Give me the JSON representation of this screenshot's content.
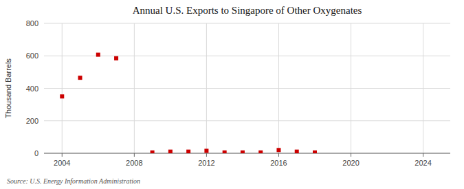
{
  "chart_data": {
    "type": "scatter",
    "title": "Annual U.S. Exports to Singapore of Other Oxygenates",
    "ylabel": "Thousand Barrels",
    "source": "Source: U.S. Energy Information Administration",
    "x": [
      2004,
      2005,
      2006,
      2007,
      2009,
      2010,
      2011,
      2012,
      2013,
      2014,
      2015,
      2016,
      2017,
      2018
    ],
    "values": [
      350,
      465,
      607,
      585,
      5,
      10,
      10,
      15,
      5,
      5,
      5,
      20,
      10,
      5
    ],
    "color": "#cc0000",
    "marker": "square",
    "xlim": [
      2003.0,
      2025.5
    ],
    "ylim": [
      0,
      800
    ],
    "xticks": [
      2004,
      2008,
      2012,
      2016,
      2020,
      2024
    ],
    "yticks": [
      0,
      200,
      400,
      600,
      800
    ],
    "grid": true
  }
}
